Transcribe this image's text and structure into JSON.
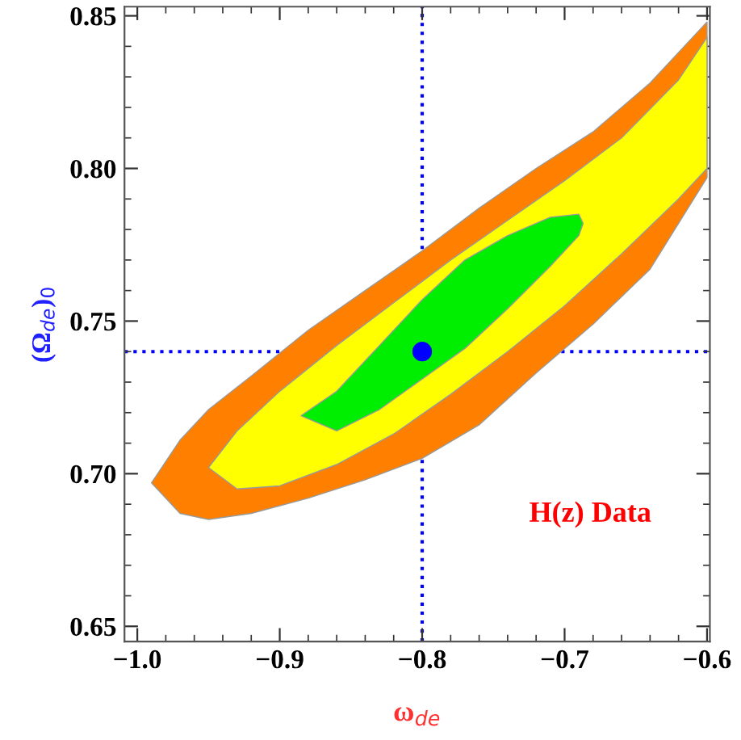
{
  "chart_data": {
    "type": "area",
    "xlabel": "ω$_{de}$",
    "ylabel": "(Ω$_{de}$)$_{0}$",
    "series": [
      {
        "type": "area",
        "color": "#ff8000",
        "x": [
          -0.99,
          -0.97,
          -0.95,
          -0.92,
          -0.88,
          -0.84,
          -0.8,
          -0.76,
          -0.72,
          -0.68,
          -0.64,
          -0.6
        ],
        "values": [
          null,
          null,
          null,
          null,
          null,
          null,
          null,
          null,
          null,
          null,
          null,
          null
        ],
        "upper": [
          0.697,
          0.711,
          0.721,
          0.732,
          0.747,
          0.76,
          0.773,
          0.787,
          0.8,
          0.812,
          0.828,
          0.848
        ],
        "lower": [
          0.697,
          0.687,
          0.685,
          0.687,
          0.692,
          0.698,
          0.705,
          0.716,
          0.733,
          0.749,
          0.767,
          0.797
        ]
      },
      {
        "type": "area",
        "color": "#ffff00",
        "x": [
          -0.95,
          -0.93,
          -0.9,
          -0.86,
          -0.82,
          -0.78,
          -0.74,
          -0.7,
          -0.66,
          -0.62,
          -0.6
        ],
        "values": [
          null,
          null,
          null,
          null,
          null,
          null,
          null,
          null,
          null,
          null,
          null
        ],
        "upper": [
          0.702,
          0.714,
          0.727,
          0.742,
          0.756,
          0.77,
          0.783,
          0.796,
          0.81,
          0.829,
          0.843
        ],
        "lower": [
          0.702,
          0.695,
          0.696,
          0.703,
          0.713,
          0.726,
          0.74,
          0.755,
          0.772,
          0.79,
          0.8
        ]
      },
      {
        "type": "area",
        "color": "#00ee00",
        "x": [
          -0.885,
          -0.86,
          -0.83,
          -0.8,
          -0.77,
          -0.74,
          -0.71,
          -0.69,
          -0.687
        ],
        "values": [
          null,
          null,
          null,
          null,
          null,
          null,
          null,
          null,
          null
        ],
        "upper": [
          0.719,
          0.727,
          0.742,
          0.757,
          0.77,
          0.778,
          0.784,
          0.785,
          0.782
        ],
        "lower": [
          0.719,
          0.714,
          0.721,
          0.731,
          0.741,
          0.754,
          0.768,
          0.778,
          0.782
        ]
      },
      {
        "type": "scatter",
        "color": "#0000ff",
        "x": [
          -0.8
        ],
        "values": [
          0.74
        ],
        "marker": "circle"
      }
    ],
    "ref_lines": [
      {
        "axis": "x",
        "value": -0.8,
        "color": "#0000ff",
        "line_style": "dotted"
      },
      {
        "axis": "y",
        "value": 0.74,
        "color": "#0000ff",
        "line_style": "dotted"
      }
    ],
    "annotations": [
      "H(z) Data"
    ],
    "xlim": [
      -1.009,
      -0.598
    ],
    "ylim": [
      0.645,
      0.853
    ],
    "xticks": [
      {
        "value": -1.0,
        "label": "−1.0"
      },
      {
        "value": -0.9,
        "label": "−0.9"
      },
      {
        "value": -0.8,
        "label": "−0.8"
      },
      {
        "value": -0.7,
        "label": "−0.7"
      },
      {
        "value": -0.6,
        "label": "−0.6"
      }
    ],
    "yticks": [
      {
        "value": 0.65,
        "label": "0.65"
      },
      {
        "value": 0.7,
        "label": "0.70"
      },
      {
        "value": 0.75,
        "label": "0.75"
      },
      {
        "value": 0.8,
        "label": "0.80"
      },
      {
        "value": 0.85,
        "label": "0.85"
      }
    ],
    "grid": false,
    "legend": false
  }
}
